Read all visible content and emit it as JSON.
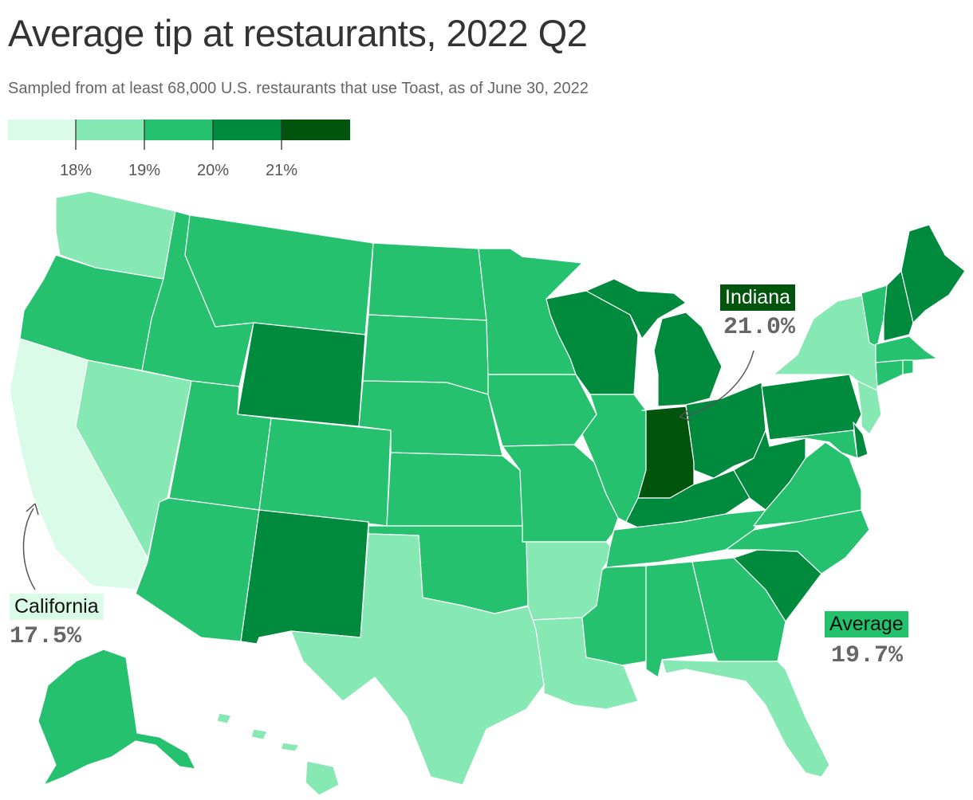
{
  "title": "Average tip at restaurants, 2022 Q2",
  "subtitle": "Sampled from at least 68,000 U.S. restaurants that use Toast, as of June 30, 2022",
  "colors": {
    "bin1": "#d9fbe8",
    "bin2": "#86e8b3",
    "bin3": "#25c16f",
    "bin4": "#008a3d",
    "bin5": "#00540c",
    "border": "#ffffff"
  },
  "legend": {
    "ticks": [
      "18%",
      "19%",
      "20%",
      "21%"
    ]
  },
  "callouts": {
    "indiana": {
      "label": "Indiana",
      "value": "21.0%"
    },
    "california": {
      "label": "California",
      "value": "17.5%"
    },
    "average": {
      "label": "Average",
      "value": "19.7%"
    }
  },
  "chart_data": {
    "type": "choropleth",
    "bins": [
      {
        "range": "below 18%",
        "color": "#d9fbe8"
      },
      {
        "range": "18% to 19%",
        "color": "#86e8b3"
      },
      {
        "range": "19% to 20%",
        "color": "#25c16f"
      },
      {
        "range": "20% to 21%",
        "color": "#008a3d"
      },
      {
        "range": "21% and above",
        "color": "#00540c"
      }
    ],
    "states": [
      {
        "state": "California",
        "bin": 1,
        "value": 17.5
      },
      {
        "state": "Washington",
        "bin": 2
      },
      {
        "state": "Nevada",
        "bin": 2
      },
      {
        "state": "Texas",
        "bin": 2
      },
      {
        "state": "Arkansas",
        "bin": 2
      },
      {
        "state": "Louisiana",
        "bin": 2
      },
      {
        "state": "Florida",
        "bin": 2
      },
      {
        "state": "New York",
        "bin": 2
      },
      {
        "state": "New Jersey",
        "bin": 2
      },
      {
        "state": "Hawaii",
        "bin": 2
      },
      {
        "state": "Oregon",
        "bin": 3
      },
      {
        "state": "Idaho",
        "bin": 3
      },
      {
        "state": "Montana",
        "bin": 3
      },
      {
        "state": "Utah",
        "bin": 3
      },
      {
        "state": "Arizona",
        "bin": 3
      },
      {
        "state": "Colorado",
        "bin": 3
      },
      {
        "state": "North Dakota",
        "bin": 3
      },
      {
        "state": "South Dakota",
        "bin": 3
      },
      {
        "state": "Nebraska",
        "bin": 3
      },
      {
        "state": "Kansas",
        "bin": 3
      },
      {
        "state": "Oklahoma",
        "bin": 3
      },
      {
        "state": "Minnesota",
        "bin": 3
      },
      {
        "state": "Iowa",
        "bin": 3
      },
      {
        "state": "Missouri",
        "bin": 3
      },
      {
        "state": "Illinois",
        "bin": 3
      },
      {
        "state": "Mississippi",
        "bin": 3
      },
      {
        "state": "Alabama",
        "bin": 3
      },
      {
        "state": "Georgia",
        "bin": 3
      },
      {
        "state": "Tennessee",
        "bin": 3
      },
      {
        "state": "North Carolina",
        "bin": 3
      },
      {
        "state": "Virginia",
        "bin": 3
      },
      {
        "state": "Maryland",
        "bin": 3
      },
      {
        "state": "Vermont",
        "bin": 3
      },
      {
        "state": "Massachusetts",
        "bin": 3
      },
      {
        "state": "Connecticut",
        "bin": 3
      },
      {
        "state": "Rhode Island",
        "bin": 3
      },
      {
        "state": "Alaska",
        "bin": 3
      },
      {
        "state": "Wyoming",
        "bin": 4
      },
      {
        "state": "New Mexico",
        "bin": 4
      },
      {
        "state": "Wisconsin",
        "bin": 4
      },
      {
        "state": "Michigan",
        "bin": 4
      },
      {
        "state": "Ohio",
        "bin": 4
      },
      {
        "state": "Kentucky",
        "bin": 4
      },
      {
        "state": "West Virginia",
        "bin": 4
      },
      {
        "state": "Pennsylvania",
        "bin": 4
      },
      {
        "state": "South Carolina",
        "bin": 4
      },
      {
        "state": "Maine",
        "bin": 4
      },
      {
        "state": "New Hampshire",
        "bin": 4
      },
      {
        "state": "Delaware",
        "bin": 4
      },
      {
        "state": "Indiana",
        "bin": 5,
        "value": 21.0
      }
    ],
    "average": 19.7
  }
}
